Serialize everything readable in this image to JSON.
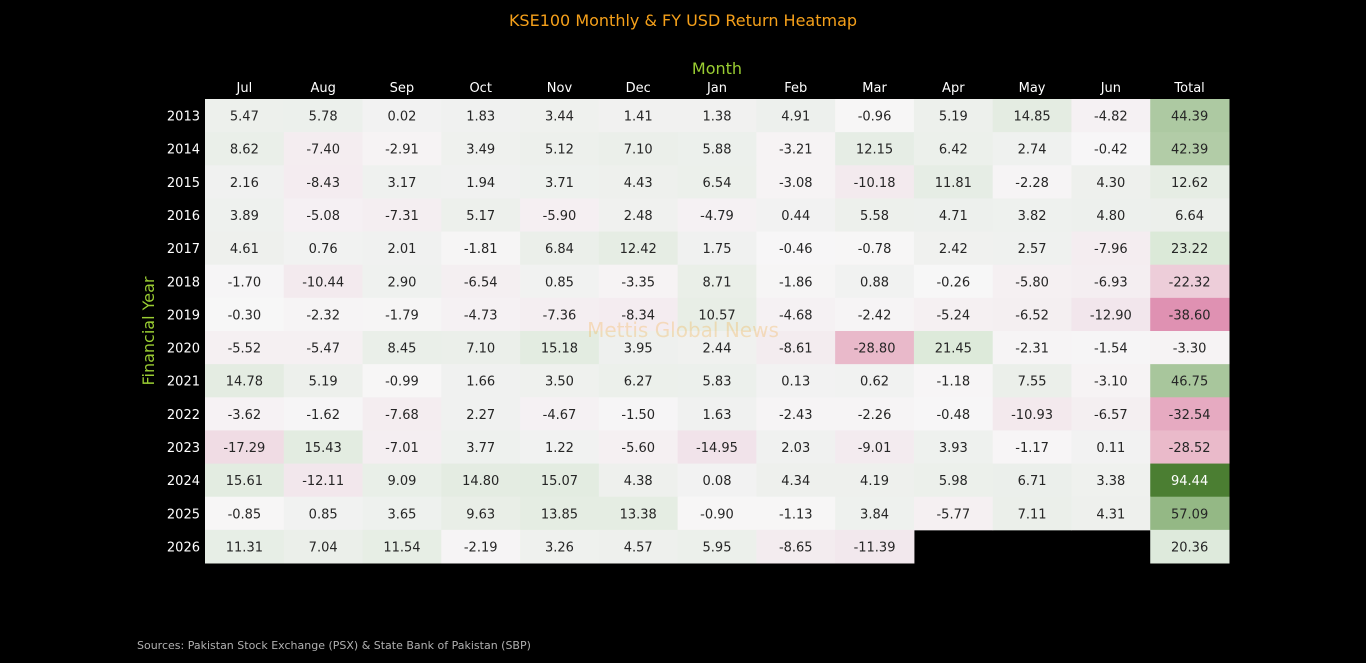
{
  "chart_data": {
    "type": "heatmap",
    "title": "KSE100 Monthly & FY USD Return Heatmap",
    "xlabel": "Month",
    "ylabel": "Financial Year",
    "columns": [
      "Jul",
      "Aug",
      "Sep",
      "Oct",
      "Nov",
      "Dec",
      "Jan",
      "Feb",
      "Mar",
      "Apr",
      "May",
      "Jun",
      "Total"
    ],
    "rows": [
      "2013",
      "2014",
      "2015",
      "2016",
      "2017",
      "2018",
      "2019",
      "2020",
      "2021",
      "2022",
      "2023",
      "2024",
      "2025",
      "2026"
    ],
    "values": [
      [
        5.47,
        5.78,
        0.02,
        1.83,
        3.44,
        1.41,
        1.38,
        4.91,
        -0.96,
        5.19,
        14.85,
        -4.82,
        44.39
      ],
      [
        8.62,
        -7.4,
        -2.91,
        3.49,
        5.12,
        7.1,
        5.88,
        -3.21,
        12.15,
        6.42,
        2.74,
        -0.42,
        42.39
      ],
      [
        2.16,
        -8.43,
        3.17,
        1.94,
        3.71,
        4.43,
        6.54,
        -3.08,
        -10.18,
        11.81,
        -2.28,
        4.3,
        12.62
      ],
      [
        3.89,
        -5.08,
        -7.31,
        5.17,
        -5.9,
        2.48,
        -4.79,
        0.44,
        5.58,
        4.71,
        3.82,
        4.8,
        6.64
      ],
      [
        4.61,
        0.76,
        2.01,
        -1.81,
        6.84,
        12.42,
        1.75,
        -0.46,
        -0.78,
        2.42,
        2.57,
        -7.96,
        23.22
      ],
      [
        -1.7,
        -10.44,
        2.9,
        -6.54,
        0.85,
        -3.35,
        8.71,
        -1.86,
        0.88,
        -0.26,
        -5.8,
        -6.93,
        -22.32
      ],
      [
        -0.3,
        -2.32,
        -1.79,
        -4.73,
        -7.36,
        -8.34,
        10.57,
        -4.68,
        -2.42,
        -5.24,
        -6.52,
        -12.9,
        -38.6
      ],
      [
        -5.52,
        -5.47,
        8.45,
        7.1,
        15.18,
        3.95,
        2.44,
        -8.61,
        -28.8,
        21.45,
        -2.31,
        -1.54,
        -3.3
      ],
      [
        14.78,
        5.19,
        -0.99,
        1.66,
        3.5,
        6.27,
        5.83,
        0.13,
        0.62,
        -1.18,
        7.55,
        -3.1,
        46.75
      ],
      [
        -3.62,
        -1.62,
        -7.68,
        2.27,
        -4.67,
        -1.5,
        1.63,
        -2.43,
        -2.26,
        -0.48,
        -10.93,
        -6.57,
        -32.54
      ],
      [
        -17.29,
        15.43,
        -7.01,
        3.77,
        1.22,
        -5.6,
        -14.95,
        2.03,
        -9.01,
        3.93,
        -1.17,
        0.11,
        -28.52
      ],
      [
        15.61,
        -12.11,
        9.09,
        14.8,
        15.07,
        4.38,
        0.08,
        4.34,
        4.19,
        5.98,
        6.71,
        3.38,
        94.44
      ],
      [
        -0.85,
        0.85,
        3.65,
        9.63,
        13.85,
        13.38,
        -0.9,
        -1.13,
        3.84,
        -5.77,
        7.11,
        4.31,
        57.09
      ],
      [
        11.31,
        7.04,
        11.54,
        -2.19,
        3.26,
        4.57,
        5.95,
        -8.65,
        -11.39,
        null,
        null,
        null,
        20.36
      ]
    ],
    "colormap": "diverging pink-white-green, centered at 0",
    "value_range": [
      -94.44,
      94.44
    ],
    "colors": {
      "negative": "#c51b7d",
      "neutral": "#f7f7f7",
      "positive": "#4d9221",
      "title": "#f5a01a",
      "axis_title": "#9acd32"
    }
  },
  "watermark": "Mettis Global News",
  "source": "Sources: Pakistan Stock Exchange (PSX) & State Bank of Pakistan (SBP)"
}
